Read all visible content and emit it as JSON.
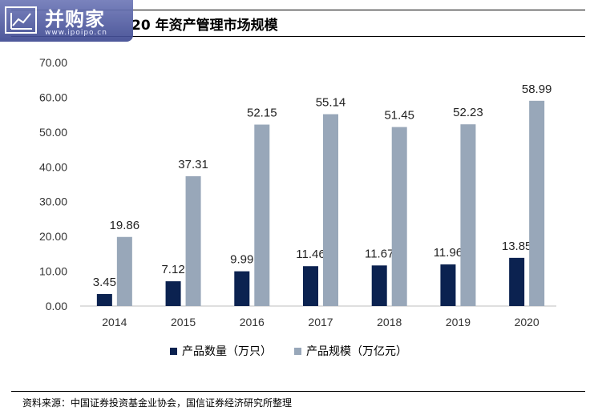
{
  "title": "20 年资产管理市场规模",
  "logo": {
    "name": "并购家",
    "url": "www.ipoipo.cn"
  },
  "source": "资料来源：中国证券投资基金业协会，国信证券经济研究所整理",
  "colors": {
    "series1": "#0b2250",
    "series2": "#98a7b9"
  },
  "chart_data": {
    "type": "bar",
    "categories": [
      "2014",
      "2015",
      "2016",
      "2017",
      "2018",
      "2019",
      "2020"
    ],
    "ylim": [
      0,
      70
    ],
    "yticks": [
      "0.00",
      "10.00",
      "20.00",
      "30.00",
      "40.00",
      "50.00",
      "60.00",
      "70.00"
    ],
    "grid": false,
    "legend_position": "bottom",
    "series": [
      {
        "name": "产品数量（万只）",
        "values": [
          3.45,
          7.12,
          9.99,
          11.46,
          11.67,
          11.96,
          13.85
        ],
        "labels": [
          "3.45",
          "7.12",
          "9.99",
          "11.46",
          "11.67",
          "11.96",
          "13.85"
        ]
      },
      {
        "name": "产品规模（万亿元）",
        "values": [
          19.86,
          37.31,
          52.15,
          55.14,
          51.45,
          52.23,
          58.99
        ],
        "labels": [
          "19.86",
          "37.31",
          "52.15",
          "55.14",
          "51.45",
          "52.23",
          "58.99"
        ]
      }
    ]
  }
}
